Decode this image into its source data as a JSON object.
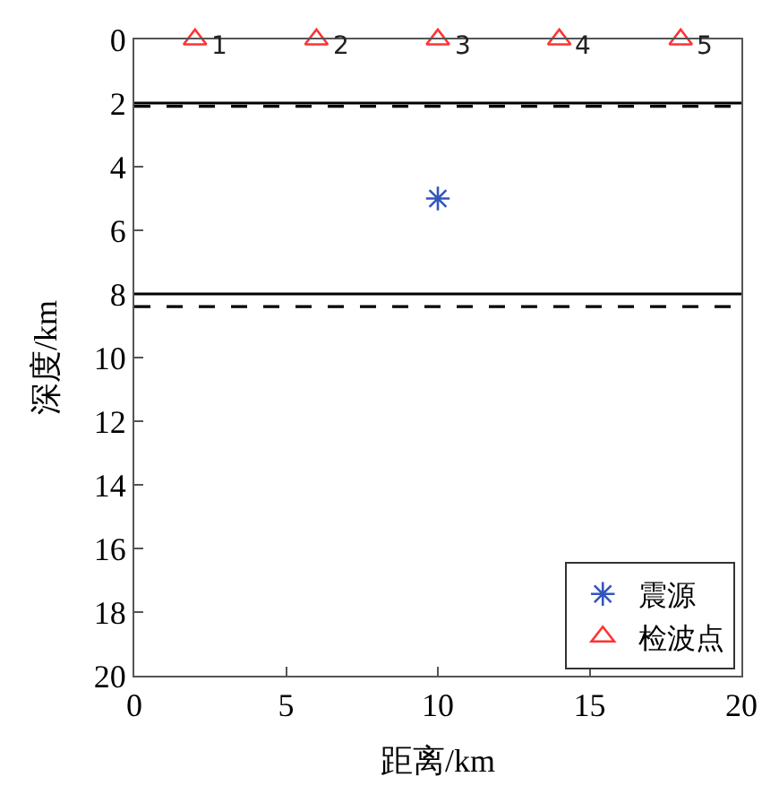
{
  "chart_data": {
    "type": "scatter",
    "xlabel": "距离/km",
    "ylabel": "深度/km",
    "series": [
      {
        "name": "震源",
        "color": "#3355bb",
        "marker": "cross",
        "x": [
          10
        ],
        "values": [
          5
        ]
      },
      {
        "name": "检波点",
        "color": "#ff3333",
        "marker": "triangle",
        "x": [
          2,
          6,
          10,
          14,
          18
        ],
        "values": [
          0,
          0,
          0,
          0,
          0
        ]
      }
    ],
    "xlim": [
      0,
      20
    ],
    "xticks": [
      0,
      5,
      10,
      15,
      20
    ],
    "ylim": [
      20,
      0
    ],
    "yticks": [
      0,
      2,
      4,
      6,
      8,
      10,
      12,
      14,
      16,
      18,
      20
    ],
    "ref_lines": [
      {
        "axis": "y",
        "value": 2,
        "color": "#000000",
        "line_style": "solid"
      },
      {
        "axis": "y",
        "value": 2.1,
        "color": "#000000",
        "line_style": "dashed"
      },
      {
        "axis": "y",
        "value": 8,
        "color": "#000000",
        "line_style": "solid"
      },
      {
        "axis": "y",
        "value": 8.4,
        "color": "#000000",
        "line_style": "dashed"
      }
    ],
    "annotations": [
      {
        "text": "1",
        "x": 2,
        "y": 0
      },
      {
        "text": "2",
        "x": 6,
        "y": 0
      },
      {
        "text": "3",
        "x": 10,
        "y": 0
      },
      {
        "text": "4",
        "x": 14,
        "y": 0
      },
      {
        "text": "5",
        "x": 18,
        "y": 0
      }
    ],
    "legend": "bottom right"
  }
}
